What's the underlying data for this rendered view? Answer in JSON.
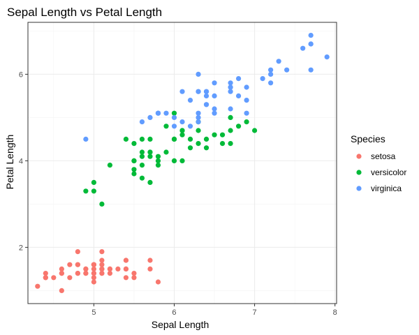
{
  "chart_data": {
    "type": "scatter",
    "title": "Sepal Length vs Petal Length",
    "xlabel": "Sepal Length",
    "ylabel": "Petal Length",
    "xlim": [
      4.18,
      8.02
    ],
    "ylim": [
      0.7,
      7.2
    ],
    "xticks": [
      5,
      6,
      7,
      8
    ],
    "yticks": [
      2,
      4,
      6
    ],
    "grid": true,
    "legend": {
      "title": "Species",
      "placement": "right"
    },
    "series": [
      {
        "name": "setosa",
        "color": "#F8766D",
        "points": [
          [
            5.1,
            1.4
          ],
          [
            4.9,
            1.4
          ],
          [
            4.7,
            1.3
          ],
          [
            4.6,
            1.5
          ],
          [
            5.0,
            1.4
          ],
          [
            5.4,
            1.7
          ],
          [
            4.6,
            1.4
          ],
          [
            5.0,
            1.5
          ],
          [
            4.4,
            1.4
          ],
          [
            4.9,
            1.5
          ],
          [
            5.4,
            1.5
          ],
          [
            4.8,
            1.6
          ],
          [
            4.8,
            1.4
          ],
          [
            4.3,
            1.1
          ],
          [
            5.8,
            1.2
          ],
          [
            5.7,
            1.5
          ],
          [
            5.4,
            1.3
          ],
          [
            5.1,
            1.4
          ],
          [
            5.7,
            1.7
          ],
          [
            5.1,
            1.5
          ],
          [
            5.4,
            1.7
          ],
          [
            5.1,
            1.5
          ],
          [
            4.6,
            1.0
          ],
          [
            5.1,
            1.7
          ],
          [
            4.8,
            1.9
          ],
          [
            5.0,
            1.6
          ],
          [
            5.0,
            1.6
          ],
          [
            5.2,
            1.5
          ],
          [
            5.2,
            1.4
          ],
          [
            4.7,
            1.6
          ],
          [
            4.8,
            1.6
          ],
          [
            5.4,
            1.5
          ],
          [
            5.2,
            1.5
          ],
          [
            5.5,
            1.4
          ],
          [
            4.9,
            1.5
          ],
          [
            5.0,
            1.2
          ],
          [
            5.5,
            1.3
          ],
          [
            4.9,
            1.4
          ],
          [
            4.4,
            1.3
          ],
          [
            5.1,
            1.5
          ],
          [
            5.0,
            1.3
          ],
          [
            4.5,
            1.3
          ],
          [
            4.4,
            1.3
          ],
          [
            5.0,
            1.6
          ],
          [
            5.1,
            1.9
          ],
          [
            4.8,
            1.4
          ],
          [
            5.1,
            1.6
          ],
          [
            4.6,
            1.4
          ],
          [
            5.3,
            1.5
          ],
          [
            5.0,
            1.4
          ]
        ]
      },
      {
        "name": "versicolor",
        "color": "#00BA38",
        "points": [
          [
            7.0,
            4.7
          ],
          [
            6.4,
            4.5
          ],
          [
            6.9,
            4.9
          ],
          [
            5.5,
            4.0
          ],
          [
            6.5,
            4.6
          ],
          [
            5.7,
            4.5
          ],
          [
            6.3,
            4.7
          ],
          [
            4.9,
            3.3
          ],
          [
            6.6,
            4.6
          ],
          [
            5.2,
            3.9
          ],
          [
            5.0,
            3.5
          ],
          [
            5.9,
            4.2
          ],
          [
            6.0,
            4.0
          ],
          [
            6.1,
            4.7
          ],
          [
            5.6,
            3.6
          ],
          [
            6.7,
            4.4
          ],
          [
            5.6,
            4.5
          ],
          [
            5.8,
            4.1
          ],
          [
            6.2,
            4.5
          ],
          [
            5.6,
            3.9
          ],
          [
            5.9,
            4.8
          ],
          [
            6.1,
            4.0
          ],
          [
            6.3,
            4.9
          ],
          [
            6.1,
            4.7
          ],
          [
            6.4,
            4.3
          ],
          [
            6.6,
            4.4
          ],
          [
            6.8,
            4.8
          ],
          [
            6.7,
            5.0
          ],
          [
            6.0,
            4.5
          ],
          [
            5.7,
            3.5
          ],
          [
            5.5,
            3.8
          ],
          [
            5.5,
            3.7
          ],
          [
            5.8,
            3.9
          ],
          [
            6.0,
            5.1
          ],
          [
            5.4,
            4.5
          ],
          [
            6.0,
            4.5
          ],
          [
            6.7,
            4.7
          ],
          [
            6.3,
            4.4
          ],
          [
            5.6,
            4.1
          ],
          [
            5.5,
            4.0
          ],
          [
            5.5,
            4.4
          ],
          [
            6.1,
            4.6
          ],
          [
            5.8,
            4.0
          ],
          [
            5.0,
            3.3
          ],
          [
            5.6,
            4.2
          ],
          [
            5.7,
            4.2
          ],
          [
            5.7,
            4.2
          ],
          [
            6.2,
            4.3
          ],
          [
            5.1,
            3.0
          ],
          [
            5.7,
            4.1
          ]
        ]
      },
      {
        "name": "virginica",
        "color": "#619CFF",
        "points": [
          [
            6.3,
            6.0
          ],
          [
            5.8,
            5.1
          ],
          [
            7.1,
            5.9
          ],
          [
            6.3,
            5.6
          ],
          [
            6.5,
            5.8
          ],
          [
            7.6,
            6.6
          ],
          [
            4.9,
            4.5
          ],
          [
            7.3,
            6.3
          ],
          [
            6.7,
            5.8
          ],
          [
            7.2,
            6.1
          ],
          [
            6.5,
            5.1
          ],
          [
            6.4,
            5.3
          ],
          [
            6.8,
            5.5
          ],
          [
            5.7,
            5.0
          ],
          [
            5.8,
            5.1
          ],
          [
            6.4,
            5.3
          ],
          [
            6.5,
            5.5
          ],
          [
            7.7,
            6.7
          ],
          [
            7.7,
            6.9
          ],
          [
            6.0,
            5.0
          ],
          [
            6.9,
            5.7
          ],
          [
            5.6,
            4.9
          ],
          [
            7.7,
            6.7
          ],
          [
            6.3,
            4.9
          ],
          [
            6.7,
            5.7
          ],
          [
            7.2,
            6.0
          ],
          [
            6.2,
            4.8
          ],
          [
            6.1,
            4.9
          ],
          [
            6.4,
            5.6
          ],
          [
            7.2,
            5.8
          ],
          [
            7.4,
            6.1
          ],
          [
            7.9,
            6.4
          ],
          [
            6.4,
            5.6
          ],
          [
            6.3,
            5.1
          ],
          [
            6.1,
            5.6
          ],
          [
            7.7,
            6.1
          ],
          [
            6.3,
            5.6
          ],
          [
            6.4,
            5.5
          ],
          [
            6.0,
            4.8
          ],
          [
            6.9,
            5.4
          ],
          [
            6.7,
            5.6
          ],
          [
            6.9,
            5.1
          ],
          [
            5.8,
            5.1
          ],
          [
            6.8,
            5.9
          ],
          [
            6.7,
            5.7
          ],
          [
            6.7,
            5.2
          ],
          [
            6.3,
            5.0
          ],
          [
            6.5,
            5.2
          ],
          [
            6.2,
            5.4
          ],
          [
            5.9,
            5.1
          ]
        ]
      }
    ]
  }
}
